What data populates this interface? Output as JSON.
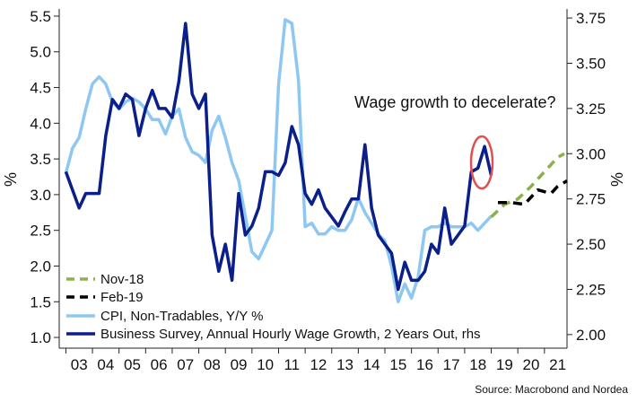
{
  "chart_data": {
    "type": "line",
    "title": "",
    "left_axis_label": "%",
    "right_axis_label": "%",
    "ylim_left": [
      0.85,
      5.6
    ],
    "ylim_right": [
      1.925,
      3.8
    ],
    "left_ticks": [
      "1.0",
      "1.5",
      "2.0",
      "2.5",
      "3.0",
      "3.5",
      "4.0",
      "4.5",
      "5.0",
      "5.5"
    ],
    "right_ticks": [
      "2.00",
      "2.25",
      "2.50",
      "2.75",
      "3.00",
      "3.25",
      "3.50",
      "3.75"
    ],
    "x_ticks": [
      "03",
      "04",
      "05",
      "06",
      "07",
      "08",
      "09",
      "10",
      "11",
      "12",
      "13",
      "14",
      "15",
      "16",
      "17",
      "18",
      "19",
      "20",
      "21"
    ],
    "x_range": [
      2002.75,
      2021.85
    ],
    "annotation": "Wage growth to decelerate?",
    "source": "Source: Macrobond and Nordea",
    "legend_position": "bottom-left",
    "series": [
      {
        "name": "CPI, Non-Tradables, Y/Y %",
        "axis": "left",
        "color": "#8ec8f2",
        "style": "solid",
        "points": [
          [
            2003.0,
            3.3
          ],
          [
            2003.25,
            3.65
          ],
          [
            2003.5,
            3.8
          ],
          [
            2003.75,
            4.2
          ],
          [
            2004.0,
            4.55
          ],
          [
            2004.25,
            4.65
          ],
          [
            2004.5,
            4.55
          ],
          [
            2004.75,
            4.3
          ],
          [
            2005.0,
            4.2
          ],
          [
            2005.25,
            4.3
          ],
          [
            2005.5,
            4.35
          ],
          [
            2005.75,
            4.3
          ],
          [
            2006.0,
            4.2
          ],
          [
            2006.25,
            4.05
          ],
          [
            2006.5,
            4.05
          ],
          [
            2006.75,
            3.85
          ],
          [
            2007.0,
            4.1
          ],
          [
            2007.25,
            4.2
          ],
          [
            2007.5,
            3.8
          ],
          [
            2007.75,
            3.6
          ],
          [
            2008.0,
            3.55
          ],
          [
            2008.25,
            3.45
          ],
          [
            2008.5,
            3.9
          ],
          [
            2008.75,
            4.1
          ],
          [
            2009.0,
            3.8
          ],
          [
            2009.25,
            3.45
          ],
          [
            2009.5,
            3.2
          ],
          [
            2009.75,
            2.7
          ],
          [
            2010.0,
            2.2
          ],
          [
            2010.25,
            2.1
          ],
          [
            2010.5,
            2.3
          ],
          [
            2010.75,
            2.5
          ],
          [
            2011.0,
            4.55
          ],
          [
            2011.25,
            5.45
          ],
          [
            2011.5,
            5.4
          ],
          [
            2011.75,
            4.6
          ],
          [
            2012.0,
            2.55
          ],
          [
            2012.25,
            2.6
          ],
          [
            2012.5,
            2.45
          ],
          [
            2012.75,
            2.45
          ],
          [
            2013.0,
            2.55
          ],
          [
            2013.25,
            2.5
          ],
          [
            2013.5,
            2.5
          ],
          [
            2013.75,
            2.65
          ],
          [
            2014.0,
            2.95
          ],
          [
            2014.25,
            2.75
          ],
          [
            2014.5,
            2.6
          ],
          [
            2014.75,
            2.45
          ],
          [
            2015.0,
            2.35
          ],
          [
            2015.25,
            2.0
          ],
          [
            2015.5,
            1.5
          ],
          [
            2015.75,
            1.75
          ],
          [
            2016.0,
            1.55
          ],
          [
            2016.25,
            1.85
          ],
          [
            2016.5,
            2.5
          ],
          [
            2016.75,
            2.55
          ],
          [
            2017.0,
            2.55
          ],
          [
            2017.25,
            2.6
          ],
          [
            2017.5,
            2.55
          ],
          [
            2017.75,
            2.55
          ],
          [
            2018.0,
            2.55
          ],
          [
            2018.25,
            2.6
          ],
          [
            2018.5,
            2.5
          ],
          [
            2018.75,
            2.6
          ],
          [
            2019.0,
            2.7
          ]
        ]
      },
      {
        "name": "Business Survey, Annual Hourly Wage Growth, 2 Years Out, rhs",
        "axis": "right",
        "color": "#0b1f8a",
        "style": "solid",
        "points": [
          [
            2003.0,
            2.9
          ],
          [
            2003.25,
            2.8
          ],
          [
            2003.5,
            2.7
          ],
          [
            2003.75,
            2.78
          ],
          [
            2004.0,
            2.78
          ],
          [
            2004.25,
            2.78
          ],
          [
            2004.5,
            3.1
          ],
          [
            2004.75,
            3.3
          ],
          [
            2005.0,
            3.25
          ],
          [
            2005.25,
            3.33
          ],
          [
            2005.5,
            3.3
          ],
          [
            2005.75,
            3.1
          ],
          [
            2006.0,
            3.25
          ],
          [
            2006.25,
            3.35
          ],
          [
            2006.5,
            3.25
          ],
          [
            2006.75,
            3.25
          ],
          [
            2007.0,
            3.2
          ],
          [
            2007.25,
            3.4
          ],
          [
            2007.5,
            3.72
          ],
          [
            2007.75,
            3.33
          ],
          [
            2008.0,
            3.25
          ],
          [
            2008.25,
            3.33
          ],
          [
            2008.5,
            2.55
          ],
          [
            2008.75,
            2.35
          ],
          [
            2009.0,
            2.5
          ],
          [
            2009.25,
            2.3
          ],
          [
            2009.5,
            2.78
          ],
          [
            2009.75,
            2.55
          ],
          [
            2010.0,
            2.6
          ],
          [
            2010.25,
            2.7
          ],
          [
            2010.5,
            2.9
          ],
          [
            2010.75,
            2.9
          ],
          [
            2011.0,
            2.88
          ],
          [
            2011.25,
            2.95
          ],
          [
            2011.5,
            3.15
          ],
          [
            2011.75,
            3.05
          ],
          [
            2012.0,
            2.78
          ],
          [
            2012.25,
            2.72
          ],
          [
            2012.5,
            2.8
          ],
          [
            2012.75,
            2.7
          ],
          [
            2013.0,
            2.65
          ],
          [
            2013.25,
            2.6
          ],
          [
            2013.5,
            2.68
          ],
          [
            2013.75,
            2.75
          ],
          [
            2014.0,
            2.75
          ],
          [
            2014.25,
            3.05
          ],
          [
            2014.5,
            2.7
          ],
          [
            2014.75,
            2.55
          ],
          [
            2015.0,
            2.5
          ],
          [
            2015.25,
            2.45
          ],
          [
            2015.5,
            2.25
          ],
          [
            2015.75,
            2.4
          ],
          [
            2016.0,
            2.3
          ],
          [
            2016.25,
            2.3
          ],
          [
            2016.5,
            2.35
          ],
          [
            2016.75,
            2.5
          ],
          [
            2017.0,
            2.45
          ],
          [
            2017.25,
            2.7
          ],
          [
            2017.5,
            2.5
          ],
          [
            2017.75,
            2.55
          ],
          [
            2018.0,
            2.6
          ],
          [
            2018.25,
            2.9
          ],
          [
            2018.5,
            2.92
          ],
          [
            2018.75,
            3.04
          ],
          [
            2019.0,
            2.88
          ]
        ]
      }
    ],
    "forecasts": [
      {
        "name": "Nov-18",
        "axis": "right",
        "color": "#8db04a",
        "style": "dashed",
        "points": [
          [
            2019.0,
            2.65
          ],
          [
            2019.5,
            2.72
          ],
          [
            2020.0,
            2.75
          ],
          [
            2020.5,
            2.82
          ],
          [
            2021.0,
            2.9
          ],
          [
            2021.5,
            2.98
          ],
          [
            2021.75,
            3.0
          ]
        ]
      },
      {
        "name": "Feb-19",
        "axis": "right",
        "color": "#000000",
        "style": "dashed",
        "points": [
          [
            2019.25,
            2.73
          ],
          [
            2019.75,
            2.73
          ],
          [
            2020.25,
            2.72
          ],
          [
            2020.75,
            2.8
          ],
          [
            2021.25,
            2.78
          ],
          [
            2021.5,
            2.82
          ],
          [
            2021.85,
            2.85
          ]
        ]
      }
    ]
  }
}
